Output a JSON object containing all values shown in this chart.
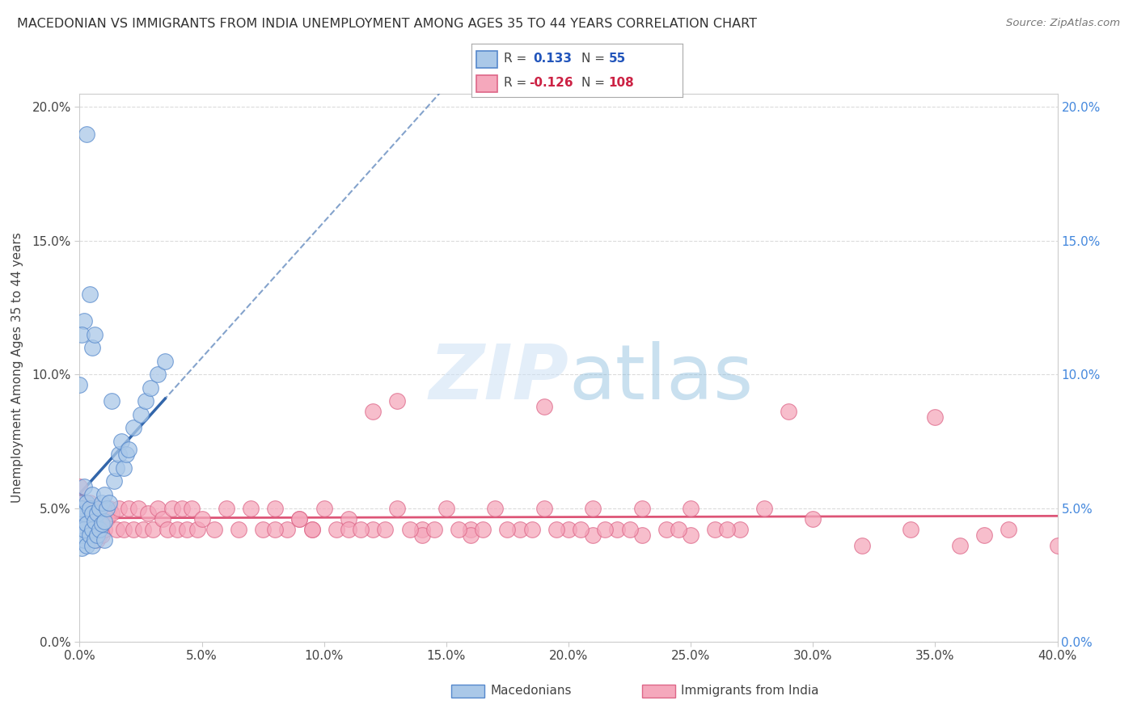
{
  "title": "MACEDONIAN VS IMMIGRANTS FROM INDIA UNEMPLOYMENT AMONG AGES 35 TO 44 YEARS CORRELATION CHART",
  "source": "Source: ZipAtlas.com",
  "ylabel": "Unemployment Among Ages 35 to 44 years",
  "xlim": [
    0.0,
    0.4
  ],
  "ylim": [
    0.0,
    0.205
  ],
  "xticks": [
    0.0,
    0.05,
    0.1,
    0.15,
    0.2,
    0.25,
    0.3,
    0.35,
    0.4
  ],
  "yticks": [
    0.0,
    0.05,
    0.1,
    0.15,
    0.2
  ],
  "macedonian_color": "#aac8e8",
  "india_color": "#f5a8bc",
  "macedonian_edge": "#5588cc",
  "india_edge": "#dd6688",
  "trend_mac_color": "#3366aa",
  "trend_india_color": "#dd5577",
  "legend_box_color": "#aabbdd",
  "watermark_color": "#d0e0f0",
  "background_color": "#ffffff",
  "grid_color": "#cccccc",
  "right_tick_color": "#4488dd",
  "mac_x": [
    0.0,
    0.0,
    0.0,
    0.0,
    0.001,
    0.001,
    0.001,
    0.001,
    0.002,
    0.002,
    0.002,
    0.002,
    0.003,
    0.003,
    0.003,
    0.004,
    0.004,
    0.005,
    0.005,
    0.005,
    0.005,
    0.006,
    0.006,
    0.007,
    0.007,
    0.008,
    0.008,
    0.009,
    0.009,
    0.01,
    0.01,
    0.01,
    0.011,
    0.012,
    0.013,
    0.014,
    0.015,
    0.016,
    0.017,
    0.018,
    0.019,
    0.02,
    0.022,
    0.025,
    0.027,
    0.029,
    0.032,
    0.035,
    0.003,
    0.004,
    0.002,
    0.001,
    0.0,
    0.005,
    0.006
  ],
  "mac_y": [
    0.038,
    0.042,
    0.048,
    0.052,
    0.035,
    0.04,
    0.045,
    0.05,
    0.038,
    0.042,
    0.048,
    0.058,
    0.036,
    0.044,
    0.052,
    0.04,
    0.05,
    0.036,
    0.042,
    0.048,
    0.055,
    0.038,
    0.045,
    0.04,
    0.048,
    0.042,
    0.05,
    0.044,
    0.052,
    0.038,
    0.045,
    0.055,
    0.05,
    0.052,
    0.09,
    0.06,
    0.065,
    0.07,
    0.075,
    0.065,
    0.07,
    0.072,
    0.08,
    0.085,
    0.09,
    0.095,
    0.1,
    0.105,
    0.19,
    0.13,
    0.12,
    0.115,
    0.096,
    0.11,
    0.115
  ],
  "ind_x": [
    0.0,
    0.0,
    0.0,
    0.001,
    0.001,
    0.002,
    0.002,
    0.003,
    0.003,
    0.004,
    0.004,
    0.005,
    0.005,
    0.006,
    0.006,
    0.007,
    0.007,
    0.008,
    0.008,
    0.009,
    0.01,
    0.01,
    0.011,
    0.012,
    0.013,
    0.015,
    0.016,
    0.018,
    0.02,
    0.022,
    0.024,
    0.026,
    0.028,
    0.03,
    0.032,
    0.034,
    0.036,
    0.038,
    0.04,
    0.042,
    0.044,
    0.046,
    0.048,
    0.05,
    0.055,
    0.06,
    0.065,
    0.07,
    0.075,
    0.08,
    0.085,
    0.09,
    0.095,
    0.1,
    0.11,
    0.12,
    0.13,
    0.14,
    0.15,
    0.16,
    0.17,
    0.18,
    0.19,
    0.2,
    0.21,
    0.22,
    0.23,
    0.24,
    0.25,
    0.26,
    0.27,
    0.28,
    0.3,
    0.32,
    0.34,
    0.36,
    0.38,
    0.4,
    0.13,
    0.19,
    0.29,
    0.35,
    0.37,
    0.12,
    0.14,
    0.16,
    0.21,
    0.23,
    0.25,
    0.08,
    0.09,
    0.095,
    0.105,
    0.11,
    0.115,
    0.125,
    0.135,
    0.145,
    0.155,
    0.165,
    0.175,
    0.185,
    0.195,
    0.205,
    0.215,
    0.225,
    0.245,
    0.265
  ],
  "ind_y": [
    0.045,
    0.052,
    0.058,
    0.042,
    0.05,
    0.042,
    0.052,
    0.042,
    0.05,
    0.042,
    0.052,
    0.04,
    0.05,
    0.04,
    0.05,
    0.038,
    0.048,
    0.04,
    0.05,
    0.04,
    0.042,
    0.05,
    0.046,
    0.05,
    0.048,
    0.042,
    0.05,
    0.042,
    0.05,
    0.042,
    0.05,
    0.042,
    0.048,
    0.042,
    0.05,
    0.046,
    0.042,
    0.05,
    0.042,
    0.05,
    0.042,
    0.05,
    0.042,
    0.046,
    0.042,
    0.05,
    0.042,
    0.05,
    0.042,
    0.05,
    0.042,
    0.046,
    0.042,
    0.05,
    0.046,
    0.042,
    0.05,
    0.042,
    0.05,
    0.042,
    0.05,
    0.042,
    0.05,
    0.042,
    0.05,
    0.042,
    0.05,
    0.042,
    0.05,
    0.042,
    0.042,
    0.05,
    0.046,
    0.036,
    0.042,
    0.036,
    0.042,
    0.036,
    0.09,
    0.088,
    0.086,
    0.084,
    0.04,
    0.086,
    0.04,
    0.04,
    0.04,
    0.04,
    0.04,
    0.042,
    0.046,
    0.042,
    0.042,
    0.042,
    0.042,
    0.042,
    0.042,
    0.042,
    0.042,
    0.042,
    0.042,
    0.042,
    0.042,
    0.042,
    0.042,
    0.042,
    0.042,
    0.042
  ]
}
